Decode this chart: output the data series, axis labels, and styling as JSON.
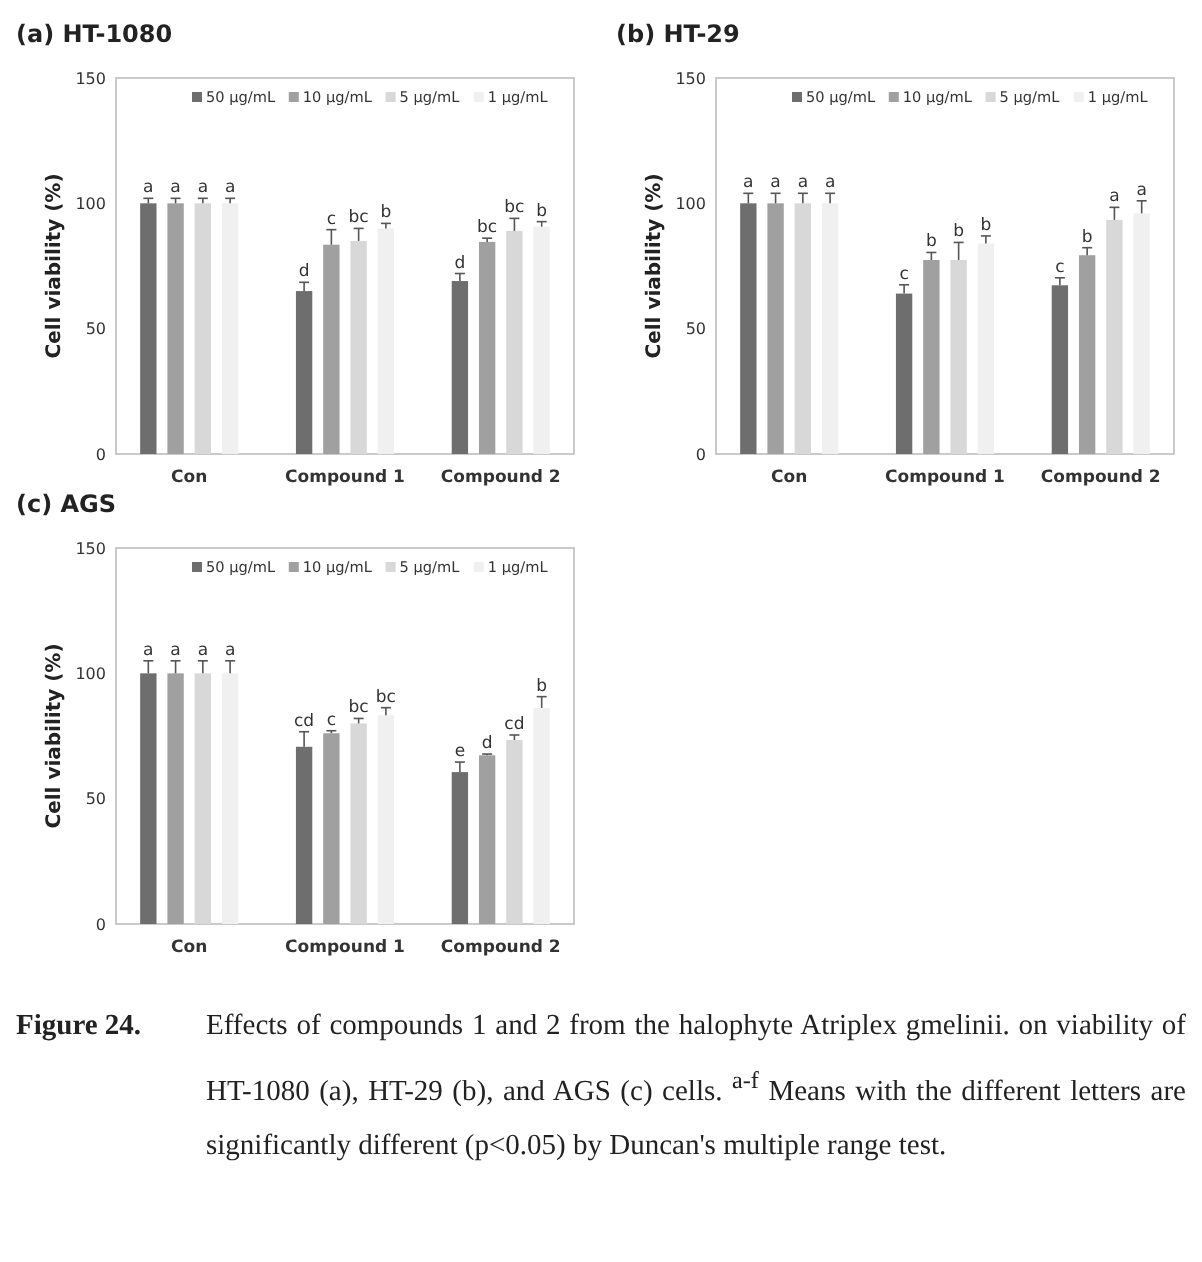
{
  "chart_data": [
    {
      "type": "bar",
      "title": "(a) HT-1080",
      "ylabel": "Cell viability (%)",
      "categories": [
        "Con",
        "Compound 1",
        "Compound 2"
      ],
      "ylim": [
        0,
        150
      ],
      "yticks": [
        0,
        50,
        100,
        150
      ],
      "legend": "top right",
      "grid": false,
      "series": [
        {
          "name": "50 μg/mL",
          "color": "#6e6e6e",
          "values": [
            100,
            65,
            69
          ],
          "errors": [
            2,
            3.5,
            3
          ],
          "value_labels": [
            "a",
            "d",
            "d"
          ]
        },
        {
          "name": "10 μg/mL",
          "color": "#a0a0a0",
          "values": [
            100,
            83.5,
            84.6
          ],
          "errors": [
            2,
            6,
            1.5
          ],
          "value_labels": [
            "a",
            "c",
            "bc"
          ]
        },
        {
          "name": "5 μg/mL",
          "color": "#d8d8d8",
          "values": [
            100,
            85,
            89
          ],
          "errors": [
            2,
            5,
            5
          ],
          "value_labels": [
            "a",
            "bc",
            "bc"
          ]
        },
        {
          "name": "1 μg/mL",
          "color": "#f0f0f0",
          "values": [
            100,
            90,
            90.7
          ],
          "errors": [
            2,
            2,
            2
          ],
          "value_labels": [
            "a",
            "b",
            "b"
          ]
        }
      ]
    },
    {
      "type": "bar",
      "title": "(b) HT-29",
      "ylabel": "Cell viability (%)",
      "categories": [
        "Con",
        "Compound 1",
        "Compound 2"
      ],
      "ylim": [
        0,
        150
      ],
      "yticks": [
        0,
        50,
        100,
        150
      ],
      "legend": "top right",
      "grid": false,
      "series": [
        {
          "name": "50 μg/mL",
          "color": "#6e6e6e",
          "values": [
            100,
            64,
            67.3
          ],
          "errors": [
            4,
            3.5,
            3
          ],
          "value_labels": [
            "a",
            "c",
            "c"
          ]
        },
        {
          "name": "10 μg/mL",
          "color": "#a0a0a0",
          "values": [
            100,
            77.4,
            79.3
          ],
          "errors": [
            4,
            3,
            3
          ],
          "value_labels": [
            "a",
            "b",
            "b"
          ]
        },
        {
          "name": "5 μg/mL",
          "color": "#d8d8d8",
          "values": [
            100,
            77.4,
            93.4
          ],
          "errors": [
            4,
            7,
            5
          ],
          "value_labels": [
            "a",
            "b",
            "a"
          ]
        },
        {
          "name": "1 μg/mL",
          "color": "#f0f0f0",
          "values": [
            100,
            84,
            96
          ],
          "errors": [
            4,
            3,
            5
          ],
          "value_labels": [
            "a",
            "b",
            "a"
          ]
        }
      ]
    },
    {
      "type": "bar",
      "title": "(c) AGS",
      "ylabel": "Cell viability (%)",
      "categories": [
        "Con",
        "Compound 1",
        "Compound 2"
      ],
      "ylim": [
        0,
        150
      ],
      "yticks": [
        0,
        50,
        100,
        150
      ],
      "legend": "top right",
      "grid": false,
      "annotations": [
        "Figure 24.",
        "Effects of compounds 1 and 2 from the halophyte Atriplex gmelinii. on viability of HT-1080 (a), HT-29 (b), and AGS (c) cells. $^{a-f}$ Means with the different letters are significantly different (p<0.05) by Duncan's multiple range test."
      ],
      "series": [
        {
          "name": "50 μg/mL",
          "color": "#6e6e6e",
          "values": [
            100,
            70.7,
            60.6
          ],
          "errors": [
            5,
            6,
            4
          ],
          "value_labels": [
            "a",
            "cd",
            "e"
          ]
        },
        {
          "name": "10 μg/mL",
          "color": "#a0a0a0",
          "values": [
            100,
            76.1,
            67.3
          ],
          "errors": [
            5,
            1,
            0.5
          ],
          "value_labels": [
            "a",
            "c",
            "d"
          ]
        },
        {
          "name": "5 μg/mL",
          "color": "#d8d8d8",
          "values": [
            100,
            80,
            73.4
          ],
          "errors": [
            5,
            2,
            2
          ],
          "value_labels": [
            "a",
            "bc",
            "cd"
          ]
        },
        {
          "name": "1 μg/mL",
          "color": "#f0f0f0",
          "values": [
            100,
            83.3,
            86.2
          ],
          "errors": [
            5,
            3,
            4.5
          ],
          "value_labels": [
            "a",
            "bc",
            "b"
          ]
        }
      ]
    }
  ]
}
